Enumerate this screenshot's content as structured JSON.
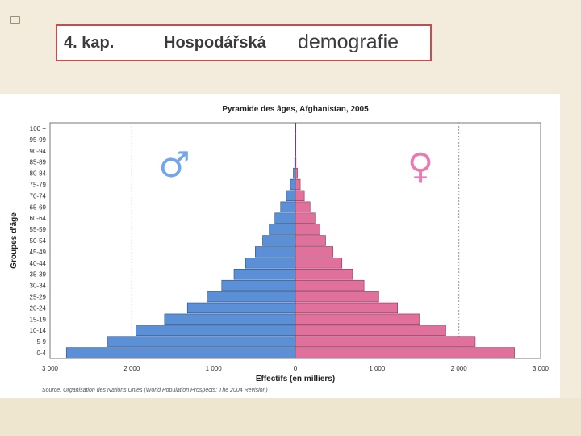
{
  "slide": {
    "title_part1": "4. kap.",
    "title_part2": "Hospodářská",
    "title_part3": "demografie",
    "accent_color": "#c0504d"
  },
  "figure": {
    "source_note": "Source: Organisation des Nations Unies (World Population Prospects: The 2004 Revision)",
    "male_symbol": "♂",
    "female_symbol": "♀",
    "male_color": "#5b8fd6",
    "female_color": "#e0709c"
  },
  "chart_data": {
    "type": "bar",
    "orientation": "horizontal",
    "title": "Pyramide des âges, Afghanistan, 2005",
    "xlabel": "Effectifs (en milliers)",
    "ylabel": "Groupes d'âge",
    "xlim": [
      -3000,
      3000
    ],
    "xticks": [
      "3 000",
      "2 000",
      "1 000",
      "0",
      "1 000",
      "2 000",
      "3 000"
    ],
    "grid": "dotted vertical at ±2000",
    "categories": [
      "0-4",
      "5-9",
      "10-14",
      "15-19",
      "20-24",
      "25-29",
      "30-34",
      "35-39",
      "40-44",
      "45-49",
      "50-54",
      "55-59",
      "60-64",
      "65-69",
      "70-74",
      "75-79",
      "80-84",
      "85-89",
      "90-94",
      "95-99",
      "100 +"
    ],
    "series": [
      {
        "name": "♂",
        "values": [
          2800,
          2300,
          1950,
          1600,
          1320,
          1080,
          900,
          750,
          610,
          490,
          400,
          320,
          250,
          180,
          110,
          60,
          25,
          8,
          2,
          0.5,
          0
        ]
      },
      {
        "name": "♀",
        "values": [
          2680,
          2200,
          1840,
          1520,
          1250,
          1020,
          840,
          700,
          570,
          460,
          370,
          300,
          240,
          180,
          110,
          60,
          25,
          8,
          2,
          0.5,
          0
        ]
      }
    ]
  }
}
